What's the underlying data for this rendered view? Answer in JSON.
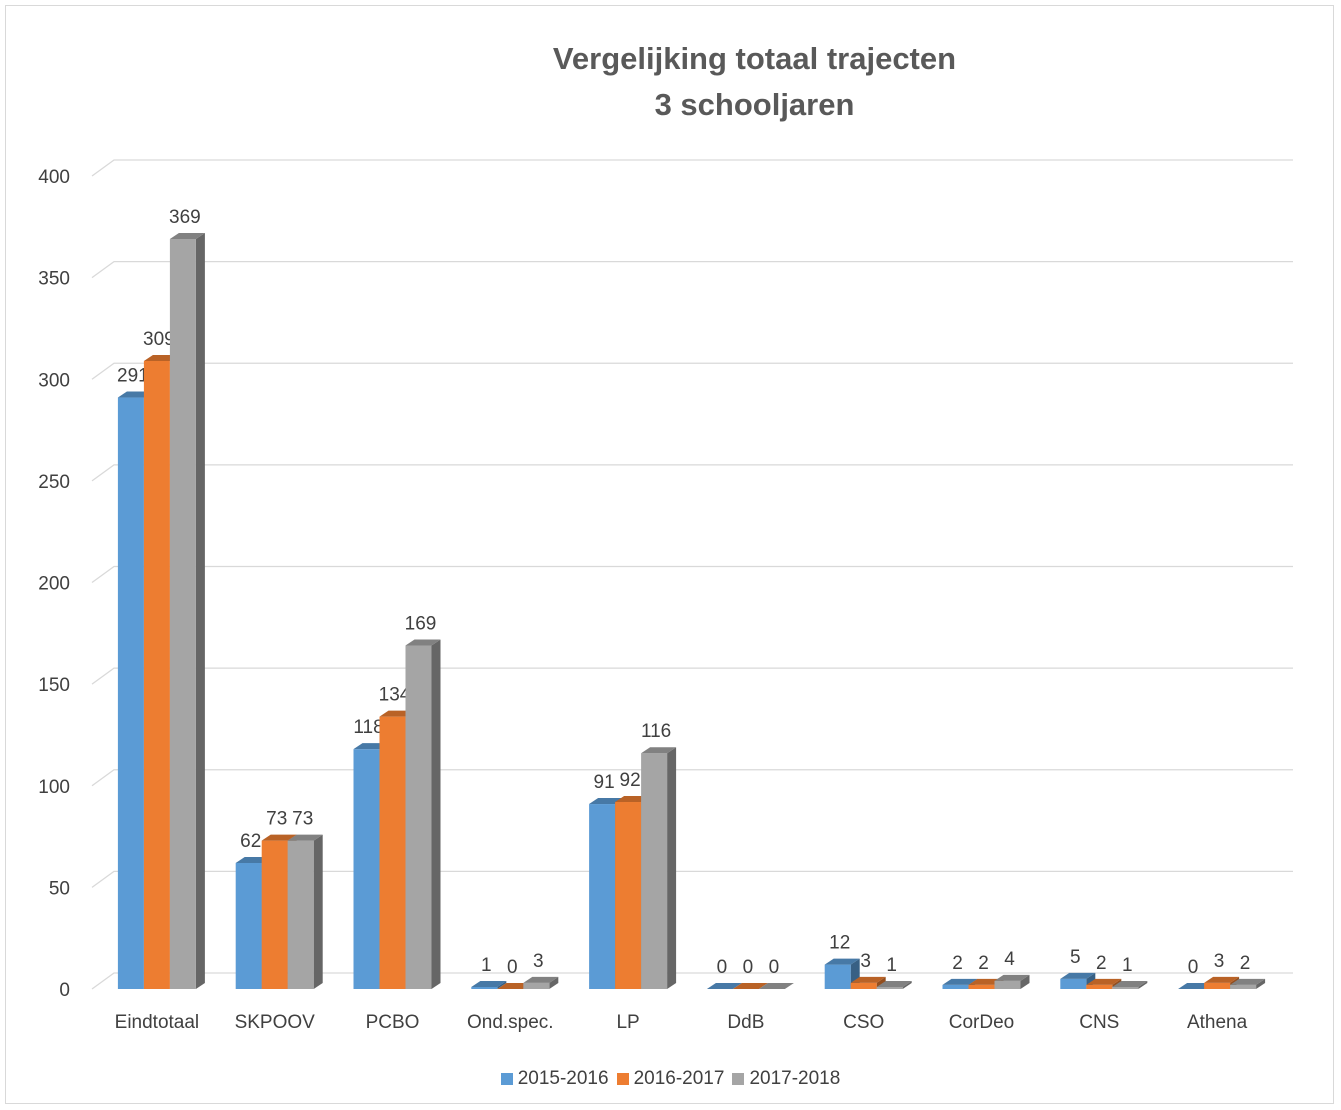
{
  "chart_data": {
    "type": "bar",
    "title": [
      "Vergelijking totaal trajecten",
      "3 schooljaren"
    ],
    "categories": [
      "Eindtotaal",
      "SKPOOV",
      "PCBO",
      "Ond.spec.",
      "LP",
      "DdB",
      "CSO",
      "CorDeo",
      "CNS",
      "Athena"
    ],
    "series": [
      {
        "name": "2015-2016",
        "color": "#5b9bd5",
        "values": [
          291,
          62,
          118,
          1,
          91,
          0,
          12,
          2,
          5,
          0
        ]
      },
      {
        "name": "2016-2017",
        "color": "#ed7d31",
        "values": [
          309,
          73,
          134,
          0,
          92,
          0,
          3,
          2,
          2,
          3
        ]
      },
      {
        "name": "2017-2018",
        "color": "#a5a5a5",
        "values": [
          369,
          73,
          169,
          3,
          116,
          0,
          1,
          4,
          1,
          2
        ]
      }
    ],
    "ylim": [
      0,
      400
    ],
    "yticks": [
      0,
      50,
      100,
      150,
      200,
      250,
      300,
      350,
      400
    ],
    "grid": true,
    "legend_position": "bottom",
    "style": "3d-clustered-column"
  }
}
